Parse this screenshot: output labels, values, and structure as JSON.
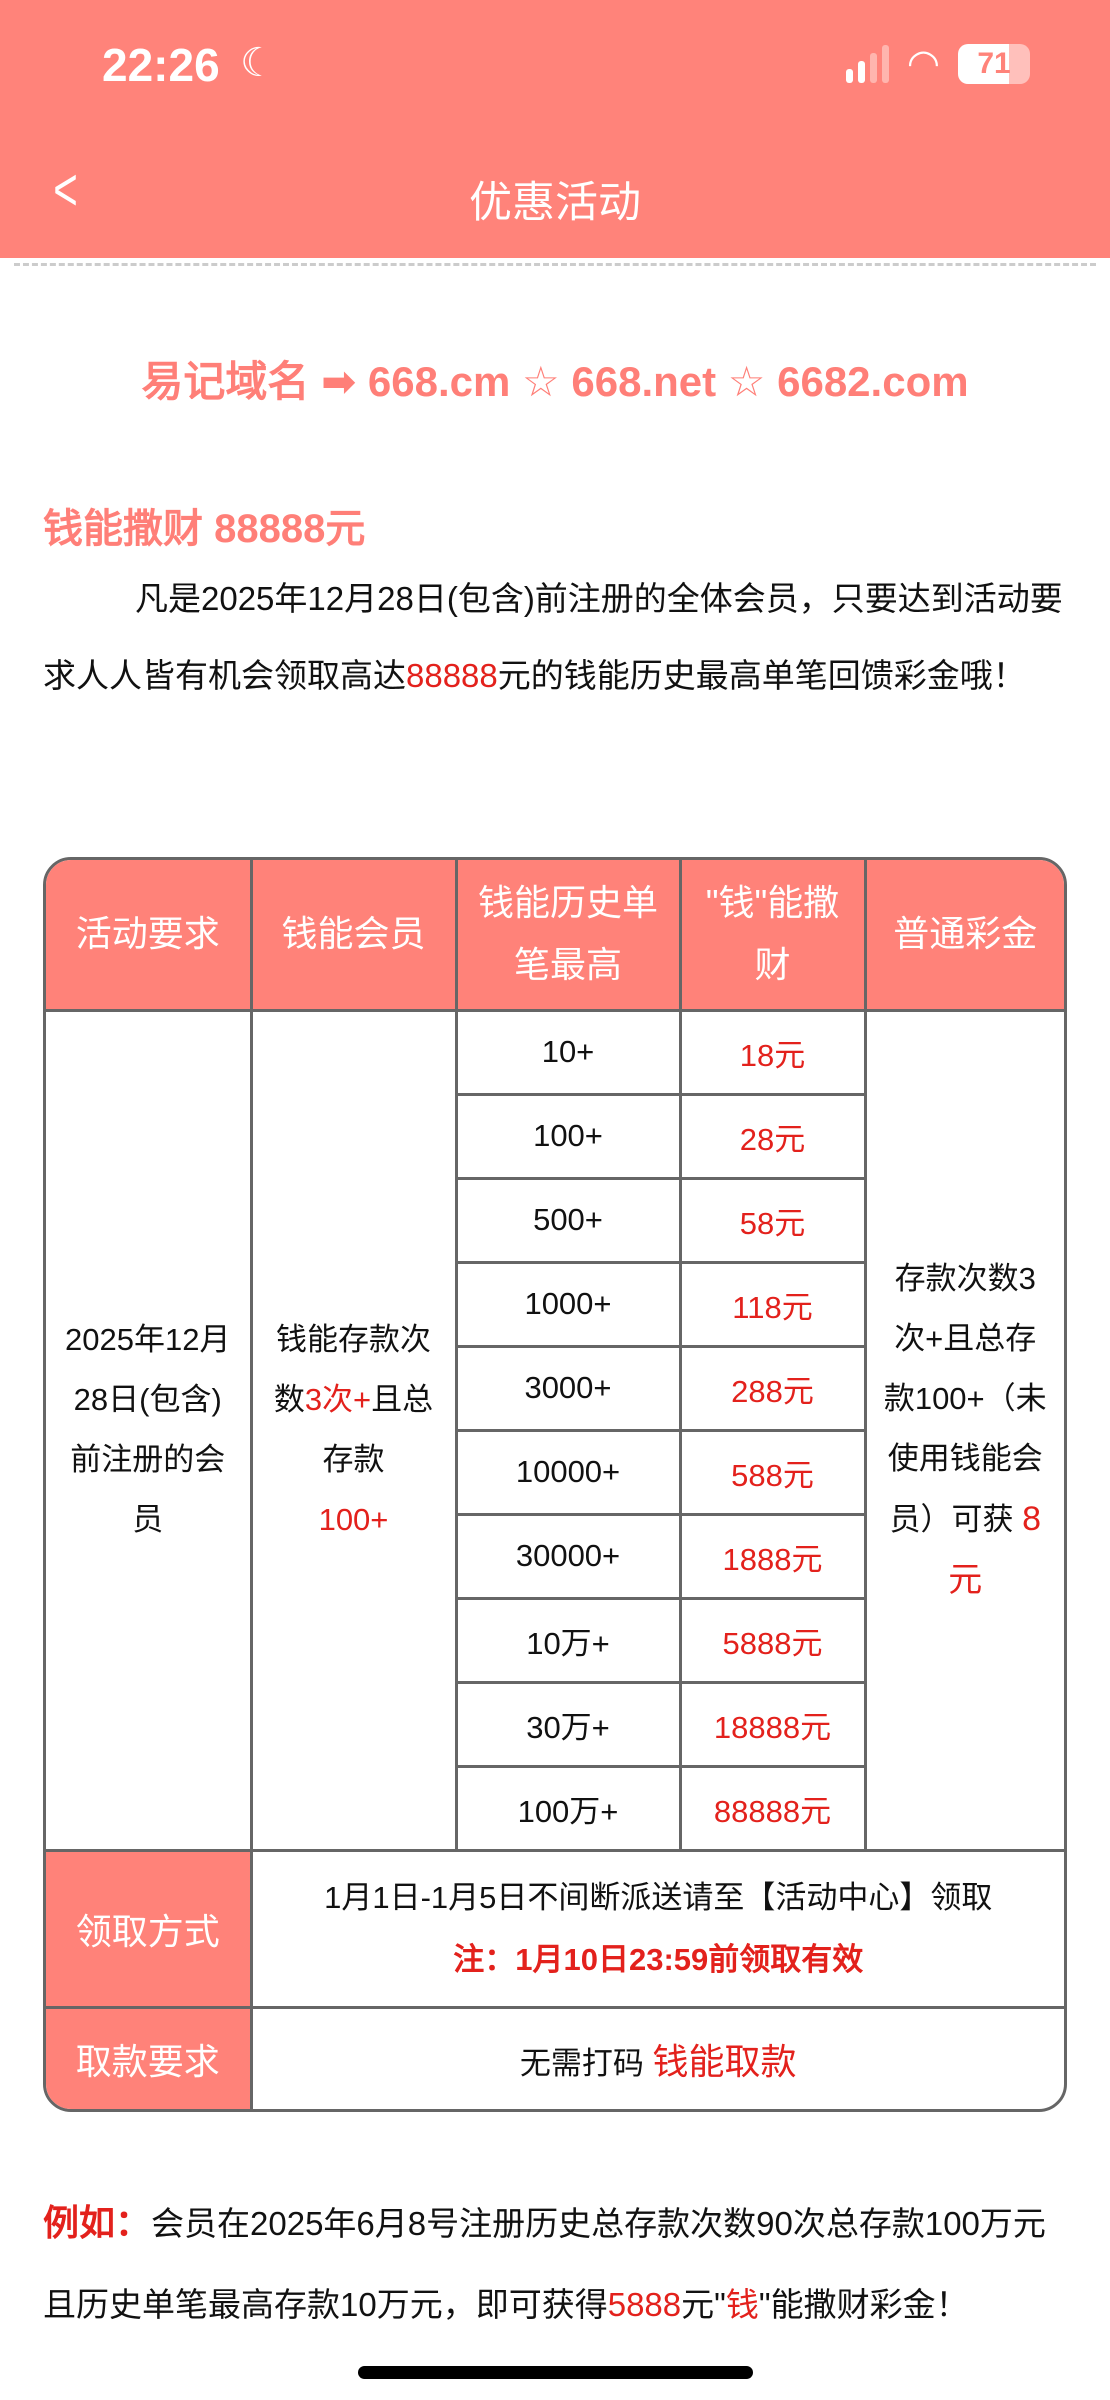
{
  "status": {
    "time": "22:26",
    "battery": "71",
    "icons": [
      "moon-icon",
      "signal-icon",
      "wifi-icon",
      "battery-icon"
    ]
  },
  "nav": {
    "title": "优惠活动",
    "back_icon": "chevron-left-icon"
  },
  "domains": "易记域名 ➡ 668.cm ☆ 668.net ☆ 6682.com",
  "promo": {
    "heading": "钱能撒财 88888元",
    "intro_1": "凡是2025年12月28日(包含)前注册的全体会员，只要达到活动要求人人皆有机会领取高达",
    "intro_amount": "88888",
    "intro_2": "元的钱能历史最高单笔回馈彩金哦！"
  },
  "table": {
    "headers": [
      "活动要求",
      "钱能会员",
      "钱能历史单笔最高",
      "\"钱\"能撒财",
      "普通彩金"
    ],
    "requirement": "2025年12月28日(包含)前注册的会员",
    "member_1": "钱能存款次数",
    "member_count": "3次+",
    "member_2": "且总存款",
    "member_amount": "100+",
    "rows": [
      {
        "deposit": "10+",
        "bonus": "18元"
      },
      {
        "deposit": "100+",
        "bonus": "28元"
      },
      {
        "deposit": "500+",
        "bonus": "58元"
      },
      {
        "deposit": "1000+",
        "bonus": "118元"
      },
      {
        "deposit": "3000+",
        "bonus": "288元"
      },
      {
        "deposit": "10000+",
        "bonus": "588元"
      },
      {
        "deposit": "30000+",
        "bonus": "1888元"
      },
      {
        "deposit": "10万+",
        "bonus": "5888元"
      },
      {
        "deposit": "30万+",
        "bonus": "18888元"
      },
      {
        "deposit": "100万+",
        "bonus": "88888元"
      }
    ],
    "normal_bonus": "存款次数3次+且总存款100+（未使用钱能会员）可获",
    "normal_amount": "8元",
    "claim_label": "领取方式",
    "claim_text": "1月1日-1月5日不间断派送请至【活动中心】领取",
    "claim_note": "注：1月10日23:59前领取有效",
    "withdraw_label": "取款要求",
    "withdraw_text": "无需打码",
    "withdraw_highlight": "钱能取款"
  },
  "example": {
    "label": "例如：",
    "text_1": "会员在2025年6月8号注册历史总存款次数90次总存款100万元且历史单笔最高存款10万元，即可获得",
    "amount": "5888",
    "text_2": "元\"",
    "qian": "钱",
    "text_3": "\"能撒财彩金！"
  },
  "colors": {
    "brand": "#FF837A",
    "highlight": "#e3211c"
  }
}
